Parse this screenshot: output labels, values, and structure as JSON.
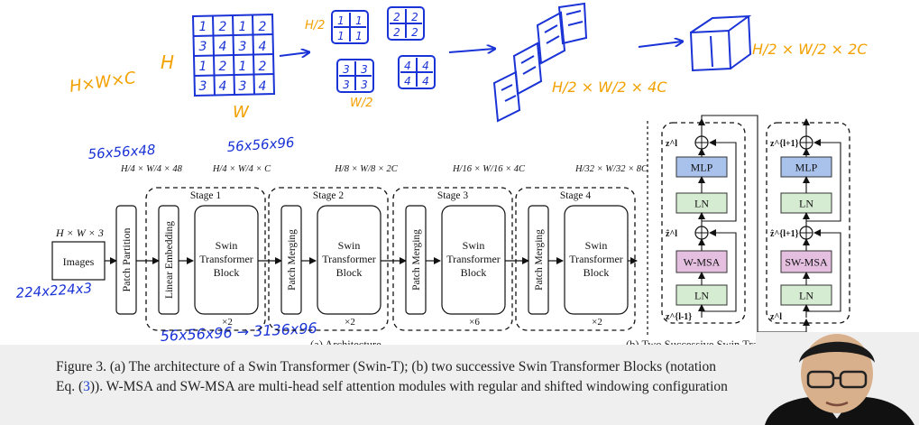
{
  "annotations": {
    "hwc": "H×W×C",
    "h": "H",
    "w": "W",
    "grid": [
      "1",
      "2",
      "1",
      "2",
      "3",
      "4",
      "3",
      "4",
      "1",
      "2",
      "1",
      "2",
      "3",
      "4",
      "3",
      "4"
    ],
    "half_h": "H/2",
    "half_w": "W/2",
    "patch_tl": [
      "1",
      "1",
      "1",
      "1"
    ],
    "patch_tr": [
      "2",
      "2",
      "2",
      "2"
    ],
    "patch_bl": [
      "3",
      "3",
      "3",
      "3"
    ],
    "patch_br": [
      "4",
      "4",
      "4",
      "4"
    ],
    "merge_dims": "H/2 × W/2 × 4C",
    "reduce_dims": "H/2 × W/2 × 2C",
    "stage1_in": "56x56x48",
    "stage1_out": "56x56x96",
    "input_size": "224x224x3",
    "merge_note": "56x56x96 → 3136x96"
  },
  "architecture": {
    "input_dims": "H × W × 3",
    "images_label": "Images",
    "patch_partition_label": "Patch Partition",
    "linear_embedding_label": "Linear Embedding",
    "patch_merging_label": "Patch Merging",
    "swin_block_label": [
      "Swin",
      "Transformer",
      "Block"
    ],
    "stages": [
      {
        "title": "Stage 1",
        "repeat": "×2",
        "dims": "H/4 × W/4 × C"
      },
      {
        "title": "Stage 2",
        "repeat": "×2",
        "dims": "H/8 × W/8 × 2C"
      },
      {
        "title": "Stage 3",
        "repeat": "×6",
        "dims": "H/16 × W/16 × 4C"
      },
      {
        "title": "Stage 4",
        "repeat": "×2",
        "dims": "H/32 × W/32 × 8C"
      }
    ],
    "pre_dims": "H/4 × W/4 × 48",
    "caption_a": "(a) Architecture"
  },
  "blocks": {
    "caption_b": "(b) Two Successive Swin Transformer Blocks",
    "left": {
      "mlp": "MLP",
      "ln_top": "LN",
      "msa": "W-MSA",
      "ln_bottom": "LN",
      "z_out": "z^l",
      "z_mid": "ẑ^l",
      "z_in": "z^{l-1}"
    },
    "right": {
      "mlp": "MLP",
      "ln_top": "LN",
      "msa": "SW-MSA",
      "ln_bottom": "LN",
      "z_out": "z^{l+1}",
      "z_mid": "ẑ^{l+1}",
      "z_in": "z^l"
    }
  },
  "caption": {
    "line1": "Figure 3. (a) The architecture of a Swin Transformer (Swin-T); (b) two successive Swin Transformer Blocks (notation",
    "line2_pre": "Eq. (",
    "line2_ref": "3",
    "line2_post": ")). W-MSA and SW-MSA are multi-head self attention modules with regular and shifted windowing configuration"
  },
  "colors": {
    "ink": "#1a33d6",
    "ink_orange": "#f2a100",
    "mlp_fill": "#a9c2ec",
    "ln_fill": "#d6ecd2",
    "msa_fill": "#e4bfe0"
  }
}
